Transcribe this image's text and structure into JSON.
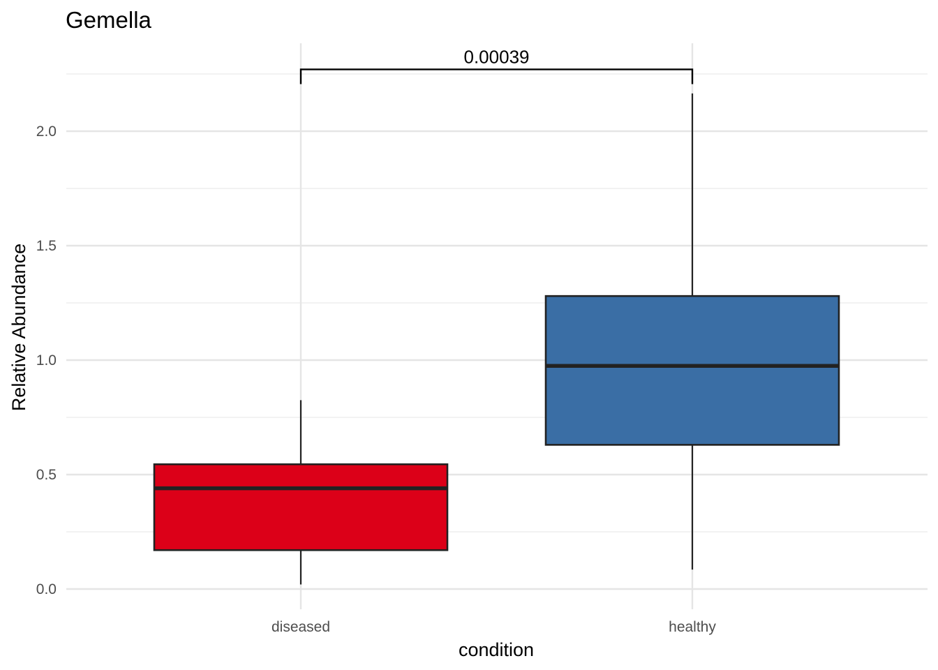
{
  "chart_data": {
    "type": "box",
    "title": "Gemella",
    "xlabel": "condition",
    "ylabel": "Relative Abundance",
    "categories": [
      "diseased",
      "healthy"
    ],
    "ylim": [
      -0.09,
      2.42
    ],
    "y_ticks": [
      "0.0",
      "0.5",
      "1.0",
      "1.5",
      "2.0"
    ],
    "grid": true,
    "legend": "none",
    "boxes": [
      {
        "category": "diseased",
        "whisker_low": 0.02,
        "q1": 0.17,
        "median": 0.44,
        "q3": 0.545,
        "whisker_high": 0.825,
        "color": "#DC0018"
      },
      {
        "category": "healthy",
        "whisker_low": 0.085,
        "q1": 0.63,
        "median": 0.975,
        "q3": 1.28,
        "whisker_high": 2.165,
        "color": "#3A6EA5"
      }
    ],
    "comparison": {
      "groups": [
        "diseased",
        "healthy"
      ],
      "label": "0.00039",
      "bracket_y": 2.27
    }
  }
}
